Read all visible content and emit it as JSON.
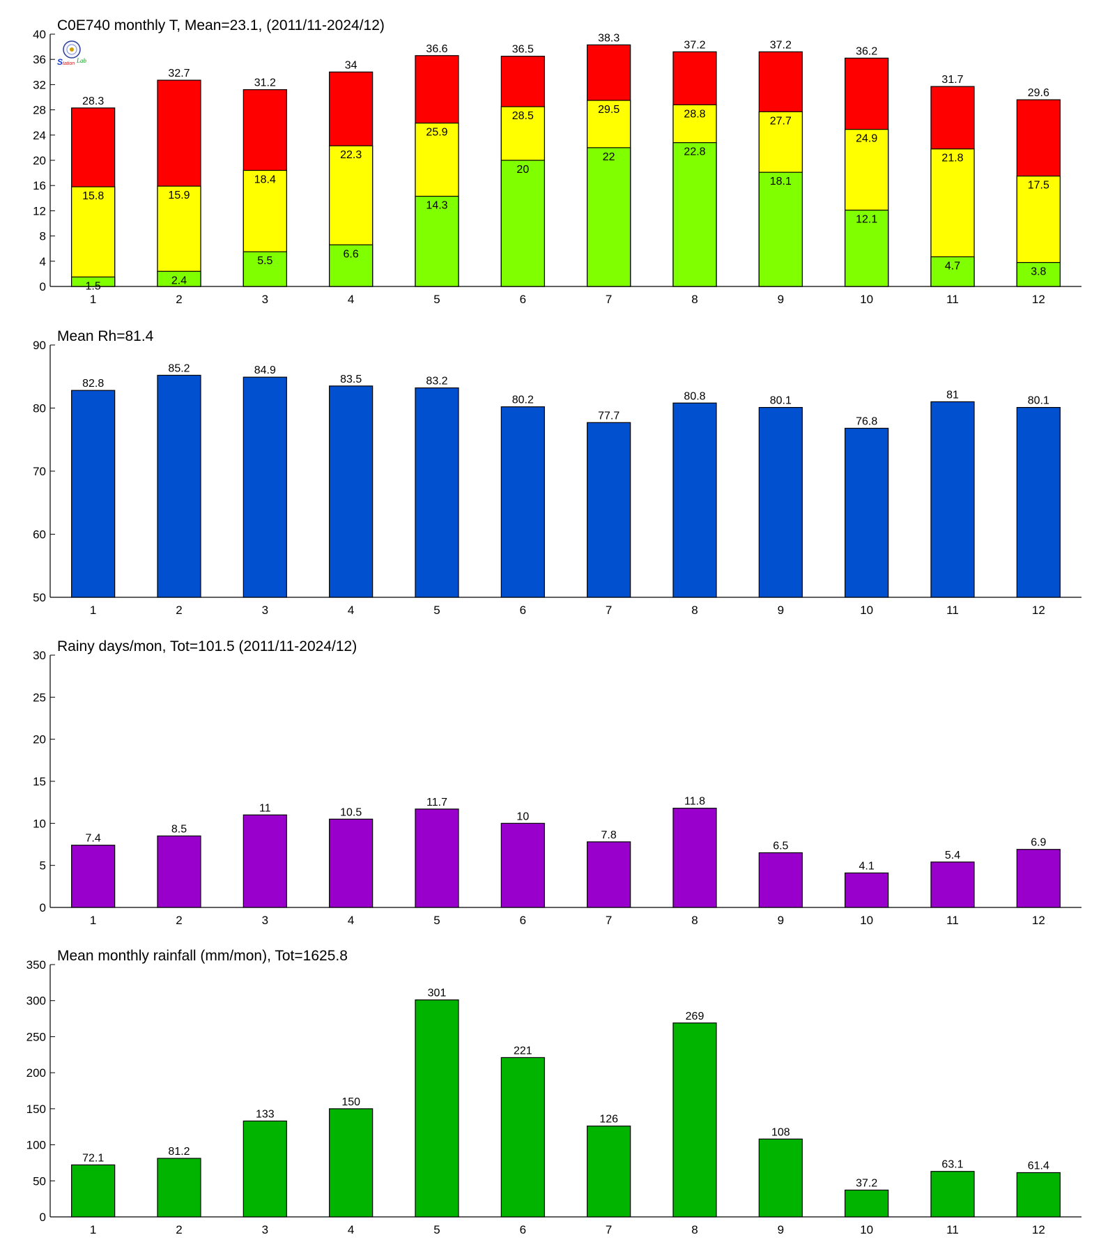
{
  "categories": [
    "1",
    "2",
    "3",
    "4",
    "5",
    "6",
    "7",
    "8",
    "9",
    "10",
    "11",
    "12"
  ],
  "colors": {
    "temp_min": "#80ff00",
    "temp_mean": "#ffff00",
    "temp_max": "#ff0000",
    "rh": "#0050d0",
    "rainy_days": "#9900cc",
    "rainfall": "#00b400",
    "axis": "#000000"
  },
  "chart_data": [
    {
      "type": "bar",
      "stacked": "overlay",
      "title": "C0E740 monthly T, Mean=23.1, (2011/11-2024/12)",
      "xlabel": "",
      "ylabel": "",
      "ylim": [
        0,
        40
      ],
      "yticks": [
        0,
        4,
        8,
        12,
        16,
        20,
        24,
        28,
        32,
        36,
        40
      ],
      "categories": [
        "1",
        "2",
        "3",
        "4",
        "5",
        "6",
        "7",
        "8",
        "9",
        "10",
        "11",
        "12"
      ],
      "series": [
        {
          "key": "max",
          "values": [
            28.3,
            32.7,
            31.2,
            34,
            36.6,
            36.5,
            38.3,
            37.2,
            37.2,
            36.2,
            31.7,
            29.6
          ]
        },
        {
          "key": "mean",
          "values": [
            15.8,
            15.9,
            18.4,
            22.3,
            25.9,
            28.5,
            29.5,
            28.8,
            27.7,
            24.9,
            21.8,
            17.5
          ]
        },
        {
          "key": "min",
          "values": [
            1.5,
            2.4,
            5.5,
            6.6,
            14.3,
            20,
            22,
            22.8,
            18.1,
            12.1,
            4.7,
            3.8
          ]
        }
      ]
    },
    {
      "type": "bar",
      "title": "Mean Rh=81.4",
      "xlabel": "",
      "ylabel": "",
      "ylim": [
        50,
        90
      ],
      "yticks": [
        50,
        60,
        70,
        80,
        90
      ],
      "categories": [
        "1",
        "2",
        "3",
        "4",
        "5",
        "6",
        "7",
        "8",
        "9",
        "10",
        "11",
        "12"
      ],
      "values": [
        82.8,
        85.2,
        84.9,
        83.5,
        83.2,
        80.2,
        77.7,
        80.8,
        80.1,
        76.8,
        81,
        80.1
      ]
    },
    {
      "type": "bar",
      "title": "Rainy days/mon, Tot=101.5 (2011/11-2024/12)",
      "xlabel": "",
      "ylabel": "",
      "ylim": [
        0,
        30
      ],
      "yticks": [
        0,
        5,
        10,
        15,
        20,
        25,
        30
      ],
      "categories": [
        "1",
        "2",
        "3",
        "4",
        "5",
        "6",
        "7",
        "8",
        "9",
        "10",
        "11",
        "12"
      ],
      "values": [
        7.4,
        8.5,
        11,
        10.5,
        11.7,
        10,
        7.8,
        11.8,
        6.5,
        4.1,
        5.4,
        6.9
      ]
    },
    {
      "type": "bar",
      "title": "Mean monthly rainfall (mm/mon), Tot=1625.8",
      "xlabel": "",
      "ylabel": "",
      "ylim": [
        0,
        350
      ],
      "yticks": [
        0,
        50,
        100,
        150,
        200,
        250,
        300,
        350
      ],
      "categories": [
        "1",
        "2",
        "3",
        "4",
        "5",
        "6",
        "7",
        "8",
        "9",
        "10",
        "11",
        "12"
      ],
      "values": [
        72.1,
        81.2,
        133,
        150,
        301,
        221,
        126,
        269,
        108,
        37.2,
        63.1,
        61.4
      ]
    }
  ],
  "logo": {
    "icon": "station-logo-icon",
    "text": "Lab"
  }
}
